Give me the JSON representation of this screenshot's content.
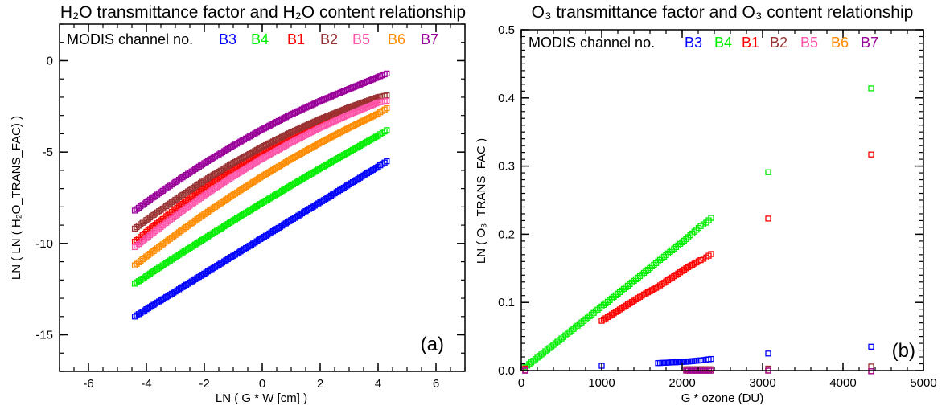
{
  "chart_data": [
    {
      "type": "scatter",
      "title": "H₂O transmittance factor and H₂O content relationship",
      "xlabel": "LN ( G * W [cm] )",
      "ylabel": "LN ( LN ( H₂O_TRANS_FAC) )",
      "panel_label": "(a)",
      "legend_title": "MODIS channel no.",
      "xlim": [
        -7,
        7
      ],
      "ylim": [
        -17,
        2
      ],
      "xticks": [
        -6,
        -4,
        -2,
        0,
        2,
        4,
        6
      ],
      "xminor": 0.5,
      "yticks": [
        0,
        -5,
        -10,
        -15
      ],
      "yminor": 1,
      "dense_gap": 1.1,
      "dense_step": 0.06,
      "series": [
        {
          "name": "B3",
          "color": "#0000ff",
          "x": [
            -4.4,
            -4.2,
            -4.0,
            -3,
            -2,
            -1,
            0,
            1,
            2,
            3,
            4,
            4.3
          ],
          "y": [
            -14.0,
            -13.8,
            -13.6,
            -12.63,
            -11.65,
            -10.68,
            -9.7,
            -8.72,
            -7.75,
            -6.77,
            -5.8,
            -5.5
          ]
        },
        {
          "name": "B4",
          "color": "#00ee00",
          "x": [
            -4.4,
            -4.2,
            -4.0,
            -3,
            -2,
            -1,
            0,
            1,
            2,
            3,
            4,
            4.3
          ],
          "y": [
            -12.2,
            -12.0,
            -11.78,
            -10.75,
            -9.74,
            -8.75,
            -7.78,
            -6.83,
            -5.9,
            -4.99,
            -4.1,
            -3.8
          ]
        },
        {
          "name": "B1",
          "color": "#ff0000",
          "x": [
            -4.4,
            -4.2,
            -4.0,
            -3,
            -2,
            -1,
            0,
            1,
            2,
            3,
            4
          ],
          "y": [
            -9.9,
            -9.65,
            -9.37,
            -8.12,
            -6.97,
            -5.91,
            -4.96,
            -4.11,
            -3.35,
            -2.7,
            -2.15
          ]
        },
        {
          "name": "B2",
          "color": "#993333",
          "x": [
            -4.4,
            -4.2,
            -4.0,
            -3,
            -2,
            -1,
            0,
            1,
            2,
            3,
            4,
            4.3
          ],
          "y": [
            -9.19,
            -8.95,
            -8.72,
            -7.61,
            -6.56,
            -5.6,
            -4.72,
            -3.92,
            -3.2,
            -2.56,
            -2.0,
            -1.9
          ]
        },
        {
          "name": "B5",
          "color": "#ff55aa",
          "x": [
            -4.4,
            -4.2,
            -4.0,
            -3,
            -2,
            -1,
            0,
            1,
            2,
            3,
            4,
            4.3
          ],
          "y": [
            -10.2,
            -9.95,
            -9.7,
            -8.5,
            -7.37,
            -6.33,
            -5.36,
            -4.48,
            -3.67,
            -2.95,
            -2.3,
            -2.2
          ]
        },
        {
          "name": "B6",
          "color": "#ff8c00",
          "x": [
            -4.4,
            -4.2,
            -4.0,
            -3,
            -2,
            -1,
            0,
            1,
            2,
            3,
            4,
            4.3
          ],
          "y": [
            -11.2,
            -10.95,
            -10.71,
            -9.53,
            -8.4,
            -7.34,
            -6.33,
            -5.38,
            -4.5,
            -3.67,
            -2.9,
            -2.6
          ]
        },
        {
          "name": "B7",
          "color": "#990099",
          "x": [
            -4.4,
            -4.2,
            -4.0,
            -3,
            -2,
            -1,
            0,
            1,
            2,
            3,
            4,
            4.3
          ],
          "y": [
            -8.2,
            -7.97,
            -7.74,
            -6.64,
            -5.61,
            -4.65,
            -3.76,
            -2.94,
            -2.21,
            -1.55,
            -0.9,
            -0.7
          ]
        }
      ]
    },
    {
      "type": "scatter",
      "title": "O₃ transmittance factor and O₃ content relationship",
      "xlabel": "G * ozone (DU)",
      "ylabel": "LN ( O₃_TRANS_FAC )",
      "panel_label": "(b)",
      "legend_title": "MODIS channel no.",
      "xlim": [
        0,
        5000
      ],
      "ylim": [
        0,
        0.5
      ],
      "xticks": [
        0,
        1000,
        2000,
        3000,
        4000,
        5000
      ],
      "xminor": 200,
      "yticks": [
        0.0,
        0.1,
        0.2,
        0.3,
        0.4,
        0.5
      ],
      "yminor": 0.01,
      "dense_gap": 600,
      "dense_step": 25,
      "series": [
        {
          "name": "B3",
          "color": "#0000ff",
          "x": [
            50,
            1000,
            1700,
            2050,
            2230,
            2300,
            2360,
            3070,
            4350
          ],
          "y": [
            0.0,
            0.007,
            0.011,
            0.013,
            0.015,
            0.016,
            0.017,
            0.025,
            0.035
          ]
        },
        {
          "name": "B4",
          "color": "#00ee00",
          "x": [
            50,
            500,
            1000,
            1500,
            1700,
            2050,
            2230,
            2300,
            2360,
            3070,
            4350
          ],
          "y": [
            0.005,
            0.047,
            0.094,
            0.141,
            0.16,
            0.193,
            0.212,
            0.217,
            0.224,
            0.291,
            0.414
          ]
        },
        {
          "name": "B1",
          "color": "#ff0000",
          "x": [
            50,
            1000,
            1500,
            1700,
            2050,
            2230,
            2300,
            2360,
            3070,
            4350
          ],
          "y": [
            0.003,
            0.073,
            0.11,
            0.123,
            0.15,
            0.162,
            0.166,
            0.171,
            0.223,
            0.317
          ]
        },
        {
          "name": "B2",
          "color": "#993333",
          "x": [
            50,
            2050,
            2230,
            2360,
            3070,
            4350
          ],
          "y": [
            0.0,
            0.002,
            0.002,
            0.002,
            0.003,
            0.006
          ]
        },
        {
          "name": "B5",
          "color": "#ff55aa",
          "x": [
            50,
            2050,
            2230,
            2360,
            3070,
            4350
          ],
          "y": [
            0.0,
            0.0,
            0.0,
            0.0,
            0.0,
            -0.001
          ]
        },
        {
          "name": "B6",
          "color": "#ff8c00",
          "x": [
            50,
            2050,
            2230,
            2360,
            3070,
            4350
          ],
          "y": [
            0.0,
            0.0,
            0.0,
            0.0,
            0.0,
            -0.001
          ]
        },
        {
          "name": "B7",
          "color": "#990099",
          "x": [
            50,
            2050,
            2230,
            2360,
            3070,
            4350
          ],
          "y": [
            0.0,
            0.0,
            0.0,
            0.0,
            0.0,
            -0.001
          ]
        }
      ]
    }
  ]
}
